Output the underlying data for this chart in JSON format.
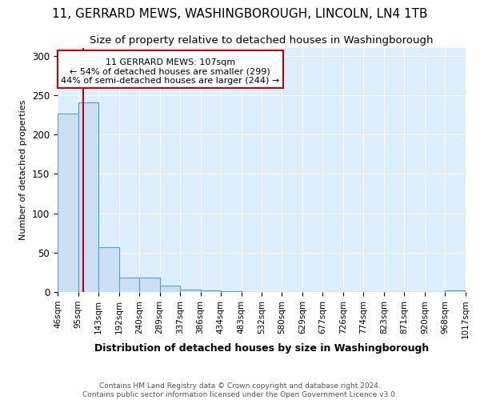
{
  "title_line1": "11, GERRARD MEWS, WASHINGBOROUGH, LINCOLN, LN4 1TB",
  "title_line2": "Size of property relative to detached houses in Washingborough",
  "xlabel": "Distribution of detached houses by size in Washingborough",
  "ylabel": "Number of detached properties",
  "footer_line1": "Contains HM Land Registry data © Crown copyright and database right 2024.",
  "footer_line2": "Contains public sector information licensed under the Open Government Licence v3.0.",
  "annotation_line1": "11 GERRARD MEWS: 107sqm",
  "annotation_line2": "← 54% of detached houses are smaller (299)",
  "annotation_line3": "44% of semi-detached houses are larger (244) →",
  "property_size": 107,
  "bar_color": "#cce0f5",
  "bar_edge_color": "#5b9bd5",
  "vline_color": "#cc0000",
  "annotation_box_color": "#cc0000",
  "bin_edges": [
    46,
    95,
    143,
    192,
    240,
    289,
    337,
    386,
    434,
    483,
    532,
    580,
    629,
    677,
    726,
    774,
    823,
    871,
    920,
    968,
    1017
  ],
  "bar_heights": [
    227,
    241,
    57,
    18,
    18,
    8,
    3,
    2,
    1,
    0,
    0,
    0,
    0,
    0,
    0,
    0,
    0,
    0,
    0,
    2
  ],
  "ylim": [
    0,
    310
  ],
  "yticks": [
    0,
    50,
    100,
    150,
    200,
    250,
    300
  ],
  "background_color": "#ddeeff",
  "grid_color": "#ffffff",
  "title_fontsize": 11,
  "subtitle_fontsize": 9.5,
  "fig_background": "#ffffff"
}
